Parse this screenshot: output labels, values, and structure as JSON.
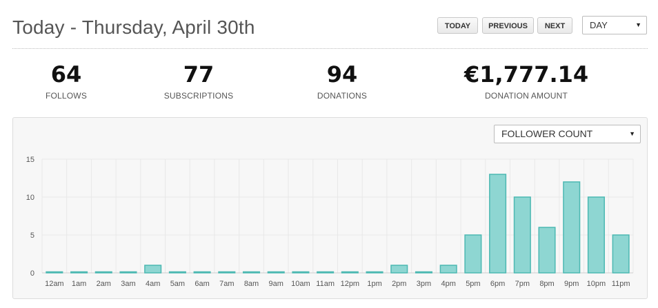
{
  "header": {
    "title": "Today - Thursday, April 30th",
    "buttons": {
      "today": "TODAY",
      "previous": "PREVIOUS",
      "next": "NEXT"
    },
    "range_select": "DAY"
  },
  "stats": [
    {
      "value": "64",
      "label": "FOLLOWS"
    },
    {
      "value": "77",
      "label": "SUBSCRIPTIONS"
    },
    {
      "value": "94",
      "label": "DONATIONS"
    },
    {
      "value": "€1,777.14",
      "label": "DONATION AMOUNT"
    }
  ],
  "metric_select": "FOLLOWER COUNT",
  "colors": {
    "bar_fill": "#8ed6d2",
    "bar_stroke": "#4cb8b2",
    "grid": "#e8e8e8"
  },
  "chart_data": {
    "type": "bar",
    "categories": [
      "12am",
      "1am",
      "2am",
      "3am",
      "4am",
      "5am",
      "6am",
      "7am",
      "8am",
      "9am",
      "10am",
      "11am",
      "12pm",
      "1pm",
      "2pm",
      "3pm",
      "4pm",
      "5pm",
      "6pm",
      "7pm",
      "8pm",
      "9pm",
      "10pm",
      "11pm"
    ],
    "values": [
      0,
      0,
      0,
      0,
      1,
      0,
      0,
      0,
      0,
      0,
      0,
      0,
      0,
      0,
      1,
      0,
      1,
      5,
      13,
      10,
      6,
      12,
      10,
      5
    ],
    "yticks": [
      0,
      5,
      10,
      15
    ],
    "ylim": [
      0,
      15
    ],
    "grid": true
  }
}
